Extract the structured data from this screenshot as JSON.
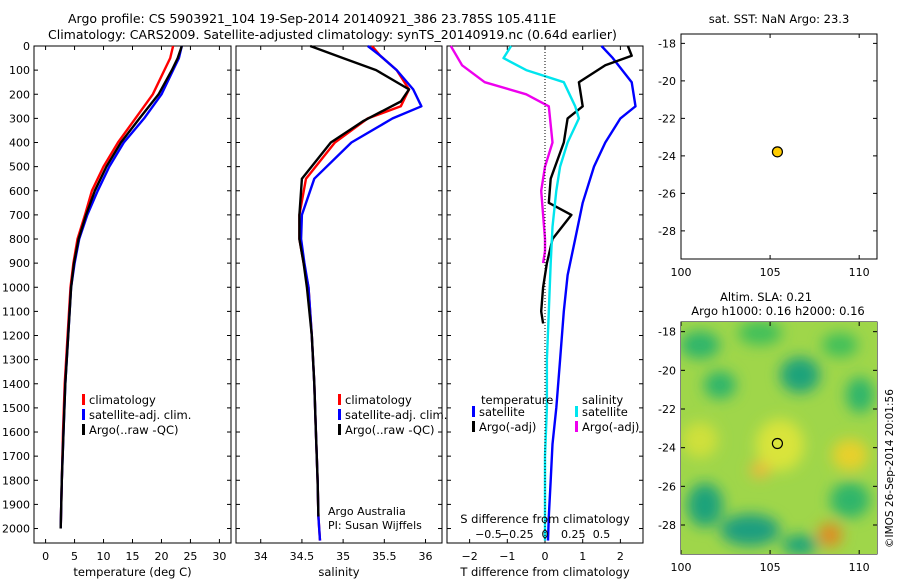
{
  "header": {
    "line1": "Argo profile: CS 5903921_104 19-Sep-2014 20140921_386 23.785S 105.411E",
    "line2": "Climatology: CARS2009. Satellite-adjusted climatology: synTS_20140919.nc (0.64d earlier)"
  },
  "side_label": "©IMOS 26-Sep-2014 20:01:56",
  "colors": {
    "climatology": "#ff0000",
    "satellite": "#0000ff",
    "argo": "#000000",
    "sat_diff_T": "#0000ff",
    "sat_diff_S": "#00e5ee",
    "argo_diff_S": "#ee00ee",
    "dot_fill": "#ffcc00",
    "sla_field": "#9fd64a"
  },
  "chart_data": [
    {
      "id": "temperature",
      "type": "line",
      "xlabel": "temperature (deg C)",
      "xlim": [
        -2,
        32
      ],
      "xticks": [
        0,
        5,
        10,
        15,
        20,
        25,
        30
      ],
      "ylim": [
        0,
        2060
      ],
      "yticks": [
        0,
        100,
        200,
        300,
        400,
        500,
        600,
        700,
        800,
        900,
        1000,
        1100,
        1200,
        1300,
        1400,
        1500,
        1600,
        1700,
        1800,
        1900,
        2000
      ],
      "legend": [
        "climatology",
        "satellite-adj. clim.",
        "Argo(..raw -QC)"
      ],
      "series": [
        {
          "name": "climatology",
          "color": "red",
          "x": [
            22,
            21.5,
            20.5,
            18.5,
            15.5,
            12.5,
            10,
            8,
            6.8,
            5.5,
            4.8,
            4.3,
            3.8,
            3.3,
            3,
            2.8,
            2.6
          ],
          "y": [
            0,
            50,
            100,
            200,
            300,
            400,
            500,
            600,
            700,
            800,
            900,
            1000,
            1200,
            1400,
            1600,
            1800,
            2000
          ]
        },
        {
          "name": "satellite-adj. clim.",
          "color": "blue",
          "x": [
            23.5,
            23,
            22,
            20,
            17,
            13.5,
            11,
            9,
            7.2,
            5.8,
            5,
            4.4,
            3.9,
            3.4,
            3.1,
            2.8,
            2.6
          ],
          "y": [
            0,
            50,
            100,
            200,
            300,
            400,
            500,
            600,
            700,
            800,
            900,
            1000,
            1200,
            1400,
            1600,
            1800,
            2000
          ]
        },
        {
          "name": "Argo(..raw -QC)",
          "color": "black",
          "x": [
            23.5,
            22.8,
            21.8,
            19.5,
            16.2,
            13,
            10.5,
            8.5,
            7,
            5.7,
            4.9,
            4.4,
            3.9,
            3.4,
            3.1,
            2.8,
            2.6
          ],
          "y": [
            0,
            50,
            100,
            200,
            300,
            400,
            500,
            600,
            700,
            800,
            900,
            1000,
            1200,
            1400,
            1600,
            1800,
            2000
          ]
        }
      ]
    },
    {
      "id": "salinity",
      "type": "line",
      "xlabel": "salinity",
      "xlim": [
        33.7,
        36.2
      ],
      "xticks": [
        34,
        34.5,
        35,
        35.5,
        36
      ],
      "xtick_labels": [
        "34",
        "34.5",
        "35",
        "35.5",
        "36"
      ],
      "ylim": [
        0,
        2060
      ],
      "legend": [
        "climatology",
        "satellite-adj. clim.",
        "Argo(..raw -QC)"
      ],
      "annotation": [
        "Argo Australia",
        "PI: Susan Wijffels"
      ],
      "series": [
        {
          "name": "climatology",
          "color": "red",
          "x": [
            35.35,
            35.45,
            35.65,
            35.8,
            35.7,
            35.3,
            34.9,
            34.55,
            34.47,
            34.47,
            34.52,
            34.58,
            34.62,
            34.65,
            34.67,
            34.69,
            34.7,
            34.72
          ],
          "y": [
            0,
            40,
            100,
            180,
            250,
            300,
            400,
            550,
            700,
            800,
            900,
            1000,
            1200,
            1400,
            1600,
            1800,
            1950,
            2050
          ]
        },
        {
          "name": "satellite-adj. clim.",
          "color": "blue",
          "x": [
            35.3,
            35.45,
            35.65,
            35.85,
            35.95,
            35.6,
            35.1,
            34.65,
            34.5,
            34.49,
            34.53,
            34.58,
            34.62,
            34.65,
            34.67,
            34.69,
            34.7,
            34.72
          ],
          "y": [
            0,
            40,
            100,
            180,
            250,
            300,
            400,
            550,
            700,
            800,
            900,
            1000,
            1200,
            1400,
            1600,
            1800,
            1950,
            2050
          ]
        },
        {
          "name": "Argo(..raw -QC)",
          "color": "black",
          "x": [
            34.6,
            35,
            35.4,
            35.8,
            35.7,
            35.25,
            34.85,
            34.5,
            34.47,
            34.47,
            34.52,
            34.56,
            34.62,
            34.65,
            34.67,
            34.69,
            34.7
          ],
          "y": [
            0,
            50,
            100,
            180,
            230,
            310,
            400,
            550,
            700,
            800,
            900,
            1000,
            1200,
            1400,
            1600,
            1800,
            1950
          ]
        }
      ]
    },
    {
      "id": "differences",
      "type": "line",
      "xlabel": "T difference from climatology",
      "xlabel_top": "S difference from climatology",
      "xlim": [
        -2.6,
        2.6
      ],
      "xticks": [
        -2,
        -1,
        0,
        1,
        2
      ],
      "xtick_labels": [
        "−2",
        "−1",
        "0",
        "1",
        "2"
      ],
      "sticks": [
        -1.5,
        -0.75,
        0,
        0.75,
        1.5
      ],
      "stick_labels": [
        "−0.5",
        "−0.25",
        "0",
        "0.25",
        "0.5"
      ],
      "ylim": [
        0,
        2060
      ],
      "legend_left_title": "temperature",
      "legend_left": [
        "satellite",
        "Argo(-adj)"
      ],
      "legend_right_title": "salinity",
      "legend_right": [
        "satellite",
        "Argo(-adj)"
      ],
      "series": [
        {
          "name": "satellite",
          "group": "temperature",
          "color": "blue",
          "x": [
            1.5,
            1.8,
            2.3,
            2.4,
            2,
            1.6,
            1.3,
            1,
            0.8,
            0.6,
            0.5,
            0.4,
            0.3,
            0.2,
            0.15,
            0.1,
            0.08
          ],
          "y": [
            0,
            50,
            150,
            250,
            300,
            400,
            500,
            650,
            800,
            950,
            1100,
            1300,
            1500,
            1650,
            1800,
            1950,
            2050
          ]
        },
        {
          "name": "Argo(-adj)",
          "group": "temperature",
          "color": "black",
          "x": [
            2.2,
            2.3,
            1.6,
            0.9,
            1,
            0.6,
            0.5,
            0.15,
            0.1,
            0.7,
            0.2,
            0.05,
            -0.05,
            -0.1,
            -0.05
          ],
          "y": [
            0,
            40,
            80,
            150,
            250,
            300,
            400,
            550,
            650,
            700,
            800,
            900,
            1000,
            1100,
            1150
          ]
        },
        {
          "name": "satellite",
          "group": "salinity",
          "color": "cyan",
          "x": [
            -0.9,
            -1.1,
            -0.5,
            0.5,
            0.8,
            0.9,
            0.6,
            0.4,
            0.3,
            0.2,
            0.15,
            0.1,
            0.05,
            0.05,
            0,
            0
          ],
          "y": [
            0,
            50,
            100,
            150,
            250,
            300,
            400,
            500,
            600,
            750,
            900,
            1100,
            1300,
            1500,
            1700,
            2050
          ]
        },
        {
          "name": "Argo(-adj)",
          "group": "salinity",
          "color": "magenta",
          "x": [
            -2.5,
            -2.2,
            -1.6,
            -0.5,
            0.1,
            0.2,
            0,
            -0.1,
            -0.05,
            0,
            0,
            -0.05
          ],
          "y": [
            0,
            80,
            150,
            200,
            250,
            400,
            500,
            600,
            700,
            800,
            850,
            900
          ]
        }
      ]
    },
    {
      "id": "map_sst",
      "type": "scatter",
      "title": "sat. SST: NaN Argo: 23.3",
      "xlim": [
        100,
        111
      ],
      "ylim": [
        -29.5,
        -17.5
      ],
      "xticks": [
        100,
        105,
        110
      ],
      "yticks": [
        -18,
        -20,
        -22,
        -24,
        -26,
        -28
      ],
      "points": [
        {
          "x": 105.411,
          "y": -23.785
        }
      ]
    },
    {
      "id": "map_sla",
      "type": "heatmap",
      "title_line1": "Altim. SLA: 0.21",
      "title_line2": "Argo h1000: 0.16 h2000: 0.16",
      "xlim": [
        100,
        111
      ],
      "ylim": [
        -29.5,
        -17.5
      ],
      "xticks": [
        100,
        105,
        110
      ],
      "yticks": [
        -18,
        -20,
        -22,
        -24,
        -26,
        -28
      ],
      "points": [
        {
          "x": 105.411,
          "y": -23.785
        }
      ]
    }
  ]
}
